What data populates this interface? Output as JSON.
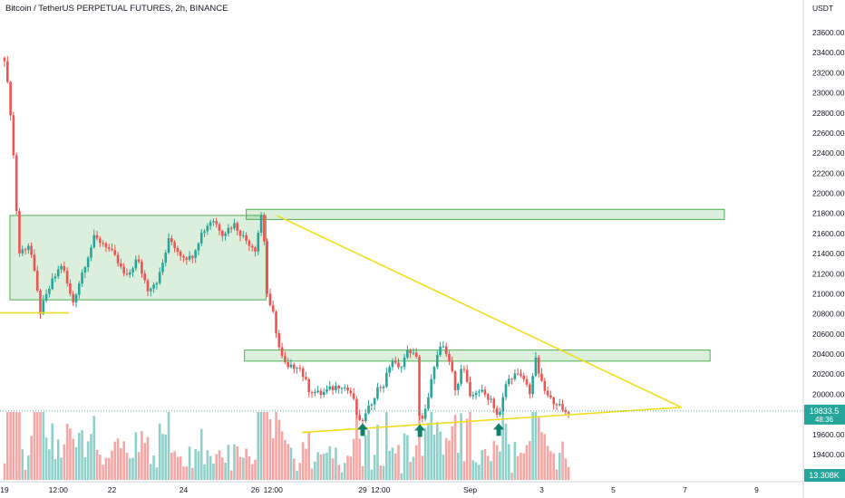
{
  "header": {
    "title": "Bitcoin / TetherUS PERPETUAL FUTURES, 2h, BINANCE"
  },
  "chart_data": {
    "type": "candlestick",
    "currency_label": "USDT",
    "y_ticks": [
      23600,
      23400,
      23200,
      23000,
      22800,
      22600,
      22400,
      22200,
      22000,
      21800,
      21600,
      21400,
      21200,
      21000,
      20800,
      20600,
      20400,
      20200,
      20000,
      19600,
      19400
    ],
    "x_ticks": [
      {
        "label": "19",
        "t": 0
      },
      {
        "label": "12:00",
        "t": 1.5
      },
      {
        "label": "22",
        "t": 3
      },
      {
        "label": "24",
        "t": 5
      },
      {
        "label": "26",
        "t": 7
      },
      {
        "label": "12:00",
        "t": 7.5
      },
      {
        "label": "29",
        "t": 10
      },
      {
        "label": "12:00",
        "t": 10.5
      },
      {
        "label": "Sep",
        "t": 13
      },
      {
        "label": "3",
        "t": 15
      },
      {
        "label": "5",
        "t": 17
      },
      {
        "label": "7",
        "t": 19
      },
      {
        "label": "9",
        "t": 21
      }
    ],
    "last_price": {
      "value": 19833.5,
      "label": "19833.5",
      "countdown": "48:36"
    },
    "volume_label": "13.308K",
    "colors": {
      "up": "#26a69a",
      "down": "#ef5350",
      "up_volume": "#8fd1ca",
      "down_volume": "#f6a6a4",
      "zone": "#4caf50",
      "trendline": "#f2dd1d",
      "arrow": "#11806a"
    },
    "zones": [
      {
        "t_start": 0.15,
        "t_end": 7.3,
        "low": 20940,
        "high": 21780
      },
      {
        "t_start": 6.75,
        "t_end": 20.1,
        "low": 21740,
        "high": 21840
      },
      {
        "t_start": 6.7,
        "t_end": 19.7,
        "low": 20330,
        "high": 20440
      }
    ],
    "trendlines": [
      {
        "t1": 7.6,
        "p1": 21780,
        "t2": 18.9,
        "p2": 19870
      },
      {
        "t1": 8.3,
        "p1": 19620,
        "t2": 18.9,
        "p2": 19870
      },
      {
        "t1": -0.5,
        "p1": 20810,
        "t2": 1.8,
        "p2": 20810
      }
    ],
    "arrows": [
      {
        "t": 10.0,
        "price": 19640
      },
      {
        "t": 11.6,
        "price": 19630
      },
      {
        "t": 13.8,
        "price": 19640
      }
    ],
    "anchors": [
      [
        0,
        23350
      ],
      [
        0.2,
        22700
      ],
      [
        0.4,
        21400
      ],
      [
        0.7,
        21500
      ],
      [
        1.0,
        20820
      ],
      [
        1.3,
        21100
      ],
      [
        1.6,
        21300
      ],
      [
        1.9,
        20900
      ],
      [
        2.2,
        21250
      ],
      [
        2.5,
        21550
      ],
      [
        2.8,
        21500
      ],
      [
        3.1,
        21350
      ],
      [
        3.4,
        21150
      ],
      [
        3.7,
        21350
      ],
      [
        4.0,
        21050
      ],
      [
        4.3,
        21150
      ],
      [
        4.6,
        21550
      ],
      [
        4.9,
        21400
      ],
      [
        5.2,
        21350
      ],
      [
        5.5,
        21600
      ],
      [
        5.8,
        21750
      ],
      [
        6.1,
        21600
      ],
      [
        6.4,
        21700
      ],
      [
        6.7,
        21550
      ],
      [
        7.0,
        21450
      ],
      [
        7.2,
        21850
      ],
      [
        7.35,
        20900
      ],
      [
        7.5,
        20800
      ],
      [
        7.7,
        20400
      ],
      [
        7.9,
        20250
      ],
      [
        8.2,
        20300
      ],
      [
        8.5,
        20050
      ],
      [
        8.8,
        20000
      ],
      [
        9.1,
        20050
      ],
      [
        9.4,
        20100
      ],
      [
        9.7,
        20000
      ],
      [
        9.9,
        19700
      ],
      [
        10.1,
        19800
      ],
      [
        10.4,
        20050
      ],
      [
        10.6,
        20100
      ],
      [
        10.8,
        20350
      ],
      [
        11.0,
        20250
      ],
      [
        11.3,
        20450
      ],
      [
        11.5,
        20350
      ],
      [
        11.6,
        19700
      ],
      [
        11.8,
        19880
      ],
      [
        12.0,
        20300
      ],
      [
        12.2,
        20480
      ],
      [
        12.4,
        20350
      ],
      [
        12.6,
        20050
      ],
      [
        12.8,
        20300
      ],
      [
        13.0,
        19950
      ],
      [
        13.2,
        20050
      ],
      [
        13.4,
        20000
      ],
      [
        13.6,
        19950
      ],
      [
        13.8,
        19750
      ],
      [
        14.0,
        20100
      ],
      [
        14.2,
        20200
      ],
      [
        14.5,
        20150
      ],
      [
        14.7,
        20000
      ],
      [
        14.8,
        20380
      ],
      [
        15.0,
        20100
      ],
      [
        15.2,
        19950
      ],
      [
        15.4,
        19930
      ],
      [
        15.6,
        19820
      ],
      [
        15.75,
        19833
      ]
    ]
  }
}
